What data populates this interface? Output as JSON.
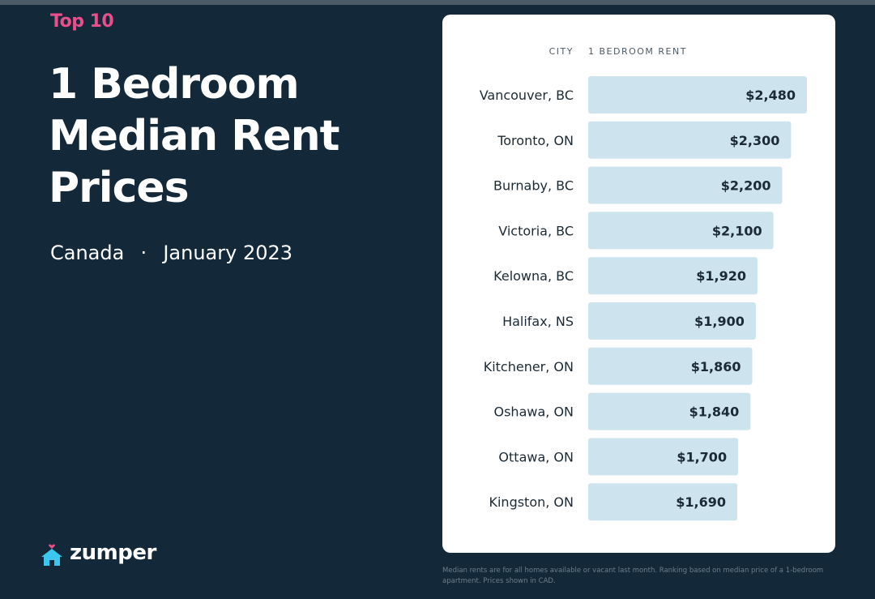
{
  "header": {
    "eyebrow": "Top 10",
    "title_lines": [
      "1 Bedroom",
      "Median Rent",
      "Prices"
    ],
    "region": "Canada",
    "separator": "·",
    "period": "January 2023"
  },
  "brand": {
    "name": "zumper",
    "icon": "house-heart-icon",
    "icon_color": "#3cc7f0",
    "heart_color": "#e94f8b"
  },
  "footnote": "Median rents are for all homes available or vacant last month. Ranking based on median price of a 1-bedroom apartment. Prices shown in CAD.",
  "colors": {
    "background": "#13293a",
    "accent": "#e94f8b",
    "bar": "#cde3ee",
    "card": "#ffffff"
  },
  "chart_data": {
    "type": "bar",
    "orientation": "horizontal",
    "column_headers": [
      "CITY",
      "1 BEDROOM RENT"
    ],
    "categories": [
      "Vancouver, BC",
      "Toronto, ON",
      "Burnaby, BC",
      "Victoria, BC",
      "Kelowna, BC",
      "Halifax, NS",
      "Kitchener, ON",
      "Oshawa, ON",
      "Ottawa, ON",
      "Kingston, ON"
    ],
    "values": [
      2480,
      2300,
      2200,
      2100,
      1920,
      1900,
      1860,
      1840,
      1700,
      1690
    ],
    "labels": [
      "$2,480",
      "$2,300",
      "$2,200",
      "$2,100",
      "$1,920",
      "$1,900",
      "$1,860",
      "$1,840",
      "$1,700",
      "$1,690"
    ],
    "unit": "CAD",
    "grid": false,
    "legend": "none"
  }
}
